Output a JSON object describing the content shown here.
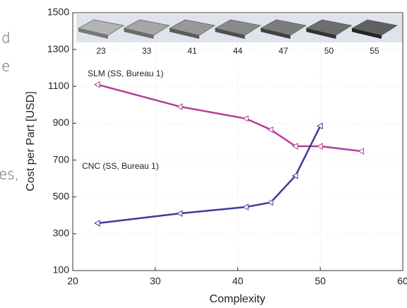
{
  "side_text": [
    "d",
    "e",
    "es,"
  ],
  "chart_data": {
    "type": "line",
    "xlabel": "Complexity",
    "ylabel": "Cost per Part [USD]",
    "xlim": [
      20,
      60
    ],
    "xticks": [
      20,
      30,
      40,
      50,
      60
    ],
    "ylim": [
      100,
      1500
    ],
    "yticks": [
      100,
      300,
      500,
      700,
      900,
      1100,
      1300,
      1500
    ],
    "grid": true,
    "image_labels": [
      "23",
      "33",
      "41",
      "44",
      "47",
      "50",
      "55"
    ],
    "series": [
      {
        "name": "SLM (SS, Bureau 1)",
        "color": "#b23c9c",
        "x": [
          23,
          33,
          41,
          44,
          47,
          50,
          55
        ],
        "values": [
          1110,
          990,
          925,
          865,
          775,
          775,
          748
        ]
      },
      {
        "name": "CNC (SS, Bureau 1)",
        "color": "#3a3d9e",
        "x": [
          23,
          33,
          41,
          44,
          47,
          50
        ],
        "values": [
          357,
          410,
          445,
          470,
          615,
          885
        ]
      }
    ]
  }
}
